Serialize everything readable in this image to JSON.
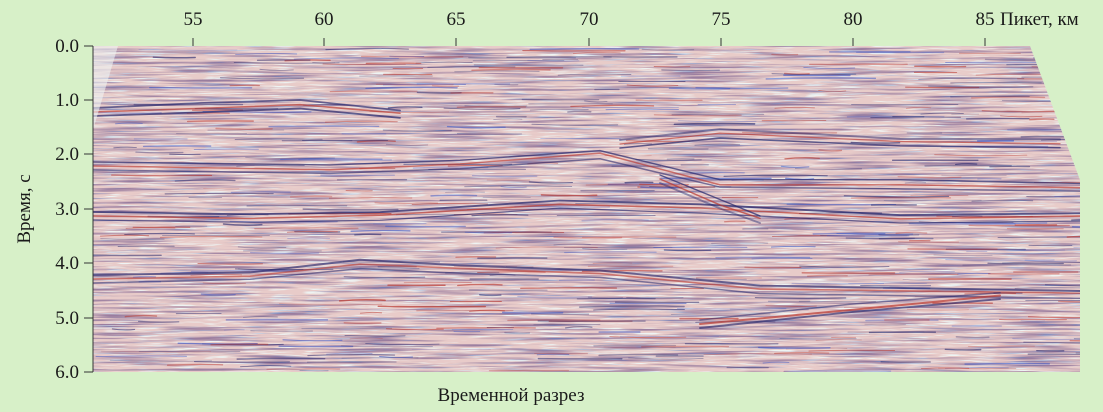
{
  "figure": {
    "x_axis": {
      "label": "Пикет, км",
      "ticks": [
        "55",
        "60",
        "65",
        "70",
        "75",
        "80",
        "85"
      ]
    },
    "y_axis": {
      "label": "Время, с",
      "ticks": [
        "0.0",
        "1.0",
        "2.0",
        "3.0",
        "4.0",
        "5.0",
        "6.0"
      ]
    },
    "caption": "Временной разрез",
    "colors": {
      "background": "#d7f0c8",
      "section_base": "#eef4f3",
      "trace_dark": "#2a2a6e",
      "trace_red": "#b9352d",
      "trace_blue": "#3d56c4"
    }
  }
}
